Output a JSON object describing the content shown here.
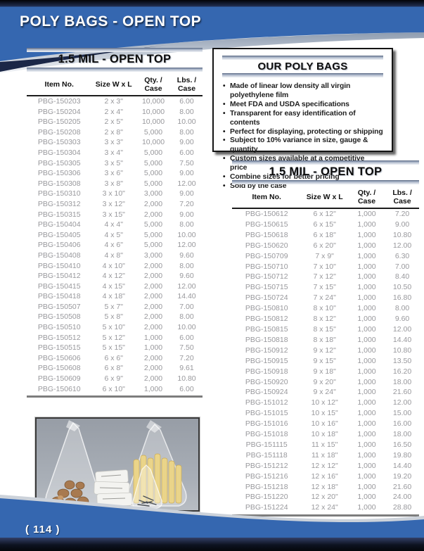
{
  "page": {
    "banner_title": "POLY BAGS - OPEN TOP",
    "page_number": "( 114 )"
  },
  "info_box": {
    "title": "OUR POLY BAGS",
    "bullets": [
      "Made of linear low density all virgin polyethylene film",
      "Meet FDA and USDA specifications",
      "Transparent for easy identification of contents",
      "Perfect for displaying, protecting or shipping",
      "Subject to 10% variance in size, gauge & quantity",
      "Custom sizes available at a competitive price",
      "Combine sizes for better pricing",
      "Sold by the case"
    ]
  },
  "tables": {
    "columns": [
      "Item No.",
      "Size W x L",
      "Qty. / Case",
      "Lbs. / Case"
    ],
    "left": {
      "title": "1.5 MIL - OPEN TOP",
      "rows": [
        [
          "PBG-150203",
          "2 x 3\"",
          "10,000",
          "6.00"
        ],
        [
          "PBG-150204",
          "2 x 4\"",
          "10,000",
          "8.00"
        ],
        [
          "PBG-150205",
          "2 x 5\"",
          "10,000",
          "10.00"
        ],
        [
          "PBG-150208",
          "2 x 8\"",
          "5,000",
          "8.00"
        ],
        [
          "PBG-150303",
          "3 x 3\"",
          "10,000",
          "9.00"
        ],
        [
          "PBG-150304",
          "3 x 4\"",
          "5,000",
          "6.00"
        ],
        [
          "PBG-150305",
          "3 x 5\"",
          "5,000",
          "7.50"
        ],
        [
          "PBG-150306",
          "3 x 6\"",
          "5,000",
          "9.00"
        ],
        [
          "PBG-150308",
          "3 x 8\"",
          "5,000",
          "12.00"
        ],
        [
          "PBG-150310",
          "3 x 10\"",
          "3,000",
          "9.00"
        ],
        [
          "PBG-150312",
          "3 x 12\"",
          "2,000",
          "7.20"
        ],
        [
          "PBG-150315",
          "3 x 15\"",
          "2,000",
          "9.00"
        ],
        [
          "PBG-150404",
          "4 x 4\"",
          "5,000",
          "8.00"
        ],
        [
          "PBG-150405",
          "4 x 5\"",
          "5,000",
          "10.00"
        ],
        [
          "PBG-150406",
          "4 x 6\"",
          "5,000",
          "12.00"
        ],
        [
          "PBG-150408",
          "4 x 8\"",
          "3,000",
          "9.60"
        ],
        [
          "PBG-150410",
          "4 x 10\"",
          "2,000",
          "8.00"
        ],
        [
          "PBG-150412",
          "4 x 12\"",
          "2,000",
          "9.60"
        ],
        [
          "PBG-150415",
          "4 x 15\"",
          "2,000",
          "12.00"
        ],
        [
          "PBG-150418",
          "4 x 18\"",
          "2,000",
          "14.40"
        ],
        [
          "PBG-150507",
          "5 x 7\"",
          "2,000",
          "7.00"
        ],
        [
          "PBG-150508",
          "5 x 8\"",
          "2,000",
          "8.00"
        ],
        [
          "PBG-150510",
          "5 x 10\"",
          "2,000",
          "10.00"
        ],
        [
          "PBG-150512",
          "5 x 12\"",
          "1,000",
          "6.00"
        ],
        [
          "PBG-150515",
          "5 x 15\"",
          "1,000",
          "7.50"
        ],
        [
          "PBG-150606",
          "6 x 6\"",
          "2,000",
          "7.20"
        ],
        [
          "PBG-150608",
          "6 x 8\"",
          "2,000",
          "9.61"
        ],
        [
          "PBG-150609",
          "6 x 9\"",
          "2,000",
          "10.80"
        ],
        [
          "PBG-150610",
          "6 x 10\"",
          "1,000",
          "6.00"
        ]
      ]
    },
    "right": {
      "title": "1.5 MIL - OPEN TOP",
      "rows": [
        [
          "PBG-150612",
          "6 x 12\"",
          "1,000",
          "7.20"
        ],
        [
          "PBG-150615",
          "6 x 15\"",
          "1,000",
          "9.00"
        ],
        [
          "PBG-150618",
          "6 x 18\"",
          "1,000",
          "10.80"
        ],
        [
          "PBG-150620",
          "6 x 20\"",
          "1,000",
          "12.00"
        ],
        [
          "PBG-150709",
          "7 x 9\"",
          "1,000",
          "6.30"
        ],
        [
          "PBG-150710",
          "7 x 10\"",
          "1,000",
          "7.00"
        ],
        [
          "PBG-150712",
          "7 x 12\"",
          "1,000",
          "8.40"
        ],
        [
          "PBG-150715",
          "7 x 15\"",
          "1,000",
          "10.50"
        ],
        [
          "PBG-150724",
          "7 x 24\"",
          "1,000",
          "16.80"
        ],
        [
          "PBG-150810",
          "8 x 10\"",
          "1,000",
          "8.00"
        ],
        [
          "PBG-150812",
          "8 x 12\"",
          "1,000",
          "9.60"
        ],
        [
          "PBG-150815",
          "8 x 15\"",
          "1,000",
          "12.00"
        ],
        [
          "PBG-150818",
          "8 x 18\"",
          "1,000",
          "14.40"
        ],
        [
          "PBG-150912",
          "9 x 12\"",
          "1,000",
          "10.80"
        ],
        [
          "PBG-150915",
          "9 x 15\"",
          "1,000",
          "13.50"
        ],
        [
          "PBG-150918",
          "9 x 18\"",
          "1,000",
          "16.20"
        ],
        [
          "PBG-150920",
          "9 x 20\"",
          "1,000",
          "18.00"
        ],
        [
          "PBG-150924",
          "9 x 24\"",
          "1,000",
          "21.60"
        ],
        [
          "PBG-151012",
          "10 x 12\"",
          "1,000",
          "12.00"
        ],
        [
          "PBG-151015",
          "10 x 15\"",
          "1,000",
          "15.00"
        ],
        [
          "PBG-151016",
          "10 x 16\"",
          "1,000",
          "16.00"
        ],
        [
          "PBG-151018",
          "10 x 18\"",
          "1,000",
          "18.00"
        ],
        [
          "PBG-151115",
          "11 x 15\"",
          "1,000",
          "16.50"
        ],
        [
          "PBG-151118",
          "11 x 18\"",
          "1,000",
          "19.80"
        ],
        [
          "PBG-151212",
          "12 x 12\"",
          "1,000",
          "14.40"
        ],
        [
          "PBG-151216",
          "12 x 16\"",
          "1,000",
          "19.20"
        ],
        [
          "PBG-151218",
          "12 x 18\"",
          "1,000",
          "21.60"
        ],
        [
          "PBG-151220",
          "12 x 20\"",
          "1,000",
          "24.00"
        ],
        [
          "PBG-151224",
          "12 x 24\"",
          "1,000",
          "28.80"
        ]
      ]
    }
  },
  "colors": {
    "banner_blue": "#3567b0",
    "navy_dark": "#16244a",
    "silver_edge": "#b9c3d2",
    "data_text": "#98989c",
    "rule_black": "#1c1c1c",
    "rule_gray": "#7d7d7d"
  }
}
